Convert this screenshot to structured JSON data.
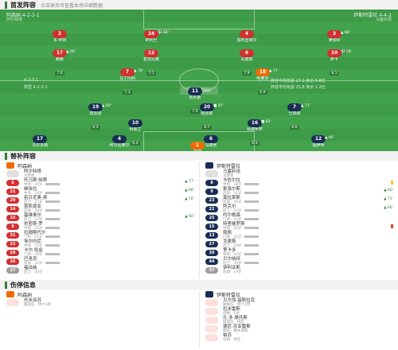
{
  "sections": {
    "lineup_title": "首发阵容",
    "lineup_sub": "点击球员可查看本场详细数据",
    "subs_title": "替补阵容",
    "injury_title": "伤停信息"
  },
  "pitch": {
    "home_team": "阿森纳 4-2-3-1",
    "home_coach": "阿尔特塔",
    "away_team": "伊斯特雷拉 4-4-2",
    "away_coach": "马塞利诺",
    "center_label": "球队数据对比",
    "left_note1": "4-2-3-1",
    "left_note2": "阵型 4-2-3-1",
    "right_note1": "阵容平均年龄 27.2 身价 5.8亿",
    "right_note2": "阵容平均年龄 25.8 身价 1.2亿"
  },
  "players": [
    {
      "num": "2",
      "name": "本·怀特",
      "rate": "7.0",
      "color": "red",
      "ev": ""
    },
    {
      "num": "24",
      "name": "萨利巴",
      "rate": "7.4",
      "color": "red",
      "ev": "⚽ 66'"
    },
    {
      "num": "4",
      "name": "加布里埃尔",
      "rate": "7.2",
      "color": "red",
      "ev": ""
    },
    {
      "num": "3",
      "name": "津琴科",
      "rate": "6.8",
      "color": "red",
      "ev": "▲ 66'"
    },
    {
      "num": "17",
      "name": "赖斯",
      "rate": "7.6",
      "color": "red",
      "ev": "▲ 66'"
    },
    {
      "num": "12",
      "name": "若日尼奥",
      "rate": "7.1",
      "color": "red",
      "ev": ""
    },
    {
      "num": "6",
      "name": "厄德高",
      "rate": "7.9",
      "color": "red",
      "ev": ""
    },
    {
      "num": "10",
      "name": "萨卡",
      "rate": "8.1",
      "color": "red",
      "ev": "⚽ 58'"
    },
    {
      "num": "7",
      "name": "马丁内利",
      "rate": "7.3",
      "color": "red",
      "ev": "▲ 70'"
    },
    {
      "num": "18",
      "name": "哈弗茨",
      "rate": "6.9",
      "color": "orange",
      "ev": "▲ 77'"
    },
    {
      "num": "11",
      "name": "热苏斯",
      "rate": "7.0",
      "color": "navy",
      "ev": ""
    },
    {
      "num": "19",
      "name": "莫雷诺",
      "rate": "6.5",
      "color": "navy",
      "ev": "▲ 60'"
    },
    {
      "num": "20",
      "name": "帕雷霍",
      "rate": "6.7",
      "color": "navy",
      "ev": "■ 45'"
    },
    {
      "num": "7",
      "name": "巴埃纳",
      "rate": "6.6",
      "color": "navy",
      "ev": "▲ 71'"
    },
    {
      "num": "10",
      "name": "科克兰",
      "rate": "6.4",
      "color": "navy",
      "ev": ""
    },
    {
      "num": "16",
      "name": "佩德罗萨",
      "rate": "6.3",
      "color": "navy",
      "ev": "■ 62'"
    },
    {
      "num": "17",
      "name": "马尔多纳",
      "rate": "6.2",
      "color": "navy",
      "ev": ""
    },
    {
      "num": "4",
      "name": "阿尔比奥尔",
      "rate": "6.8",
      "color": "navy",
      "ev": ""
    },
    {
      "num": "6",
      "name": "马德罗",
      "rate": "6.5",
      "color": "navy",
      "ev": ""
    },
    {
      "num": "12",
      "name": "福伊特",
      "rate": "6.4",
      "color": "navy",
      "ev": "▲ 66'"
    },
    {
      "num": "1",
      "name": "拉亚",
      "rate": "7.3",
      "color": "orange",
      "ev": ""
    }
  ],
  "subs_home": {
    "team": "阿森纳",
    "coach_label": "主教练",
    "coach_name": "阿尔特塔",
    "rows": [
      {
        "num": "5",
        "name": "托马斯·帕蒂",
        "info": "中场 · 30岁",
        "color": "red",
        "ev": "▲ 77'",
        "card": ""
      },
      {
        "num": "21",
        "name": "维埃拉",
        "info": "中场 · 24岁",
        "color": "red",
        "ev": "▲ 66'",
        "card": ""
      },
      {
        "num": "20",
        "name": "若日尼奥·弗",
        "info": "后卫 · 27岁",
        "color": "red",
        "ev": "▲ 70'",
        "card": ""
      },
      {
        "num": "14",
        "name": "恩凯提亚",
        "info": "前锋 · 24岁",
        "color": "red",
        "ev": "",
        "card": ""
      },
      {
        "num": "15",
        "name": "基维奥尔",
        "info": "后卫 · 23岁",
        "color": "red",
        "ev": "▲ 60'",
        "card": ""
      },
      {
        "num": "9",
        "name": "史密斯·罗",
        "info": "中场 · 25岁",
        "color": "red",
        "ev": "",
        "card": ""
      },
      {
        "num": "31",
        "name": "拉姆斯代尔",
        "info": "门将 · 25岁",
        "color": "red",
        "ev": "",
        "card": ""
      },
      {
        "num": "22",
        "name": "埃尔内尼",
        "info": "中场 · 31岁",
        "color": "red",
        "ev": "",
        "card": ""
      },
      {
        "num": "29",
        "name": "卡尔·哈金",
        "info": "门将 · 24岁",
        "color": "red",
        "ev": "",
        "card": ""
      },
      {
        "num": "26",
        "name": "巴洛贡",
        "info": "前锋 · 22岁",
        "color": "red",
        "ev": "",
        "card": ""
      }
    ],
    "last": {
      "num": "27",
      "name": "福法纳",
      "info": "后卫 · 20岁"
    }
  },
  "subs_away": {
    "team": "伊斯特雷拉",
    "coach_label": "主教练",
    "coach_name": "马塞利诺",
    "rows": [
      {
        "num": "8",
        "name": "卡佐尔拉",
        "info": "中场 · 38岁",
        "color": "navy",
        "ev": "",
        "card": "yellow"
      },
      {
        "num": "9",
        "name": "索洛尔斯",
        "info": "前锋 · 31岁",
        "color": "navy",
        "ev": "▲ 60'",
        "card": ""
      },
      {
        "num": "23",
        "name": "莫拉莱斯",
        "info": "前锋 · 36岁",
        "color": "navy",
        "ev": "▲ 71'",
        "card": ""
      },
      {
        "num": "22",
        "name": "阿克尔",
        "info": "后卫 · 21岁",
        "color": "navy",
        "ev": "▲ 66'",
        "card": ""
      },
      {
        "num": "25",
        "name": "约尔根森",
        "info": "门将 · 33岁",
        "color": "navy",
        "ev": "",
        "card": ""
      },
      {
        "num": "15",
        "name": "特里格罗斯",
        "info": "中场 · 22岁",
        "color": "navy",
        "ev": "",
        "card": "red"
      },
      {
        "num": "13",
        "name": "佩佩",
        "info": "门将 · 25岁",
        "color": "navy",
        "ev": "",
        "card": ""
      },
      {
        "num": "27",
        "name": "戈麦斯",
        "info": "后卫 · 19岁",
        "color": "navy",
        "ev": "",
        "card": ""
      },
      {
        "num": "30",
        "name": "里卡多",
        "info": "中场 · 20岁",
        "color": "navy",
        "ev": "",
        "card": ""
      },
      {
        "num": "44",
        "name": "贝尔纳特",
        "info": "后卫 · 30岁",
        "color": "navy",
        "ev": "",
        "card": ""
      }
    ],
    "last": {
      "num": "37",
      "name": "伊利亚斯",
      "info": "前锋 · 19岁"
    }
  },
  "injury_home": {
    "team": "阿森纳",
    "rows": [
      {
        "name": "托米亚苏",
        "info": "膝盖伤 · 预计3周"
      }
    ]
  },
  "injury_away": {
    "team": "伊斯特雷拉",
    "rows": [
      {
        "name": "贝尔加·基斯拉克",
        "info": "腿筋伤 · 预计2周"
      },
      {
        "name": "拉米雷斯",
        "info": "停赛 · 1场"
      },
      {
        "name": "孔·多·桑托斯",
        "info": "肌肉伤 · 待定"
      },
      {
        "name": "德尼·苏亚雷斯",
        "info": "膝伤 · 赛季报销"
      },
      {
        "name": "帕苏",
        "info": "伤病 · 待定"
      }
    ]
  }
}
